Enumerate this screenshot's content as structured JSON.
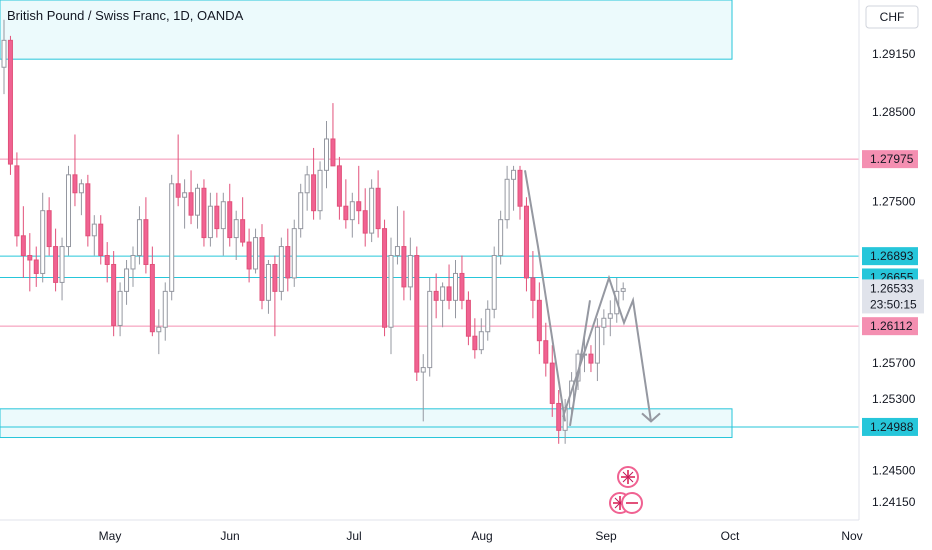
{
  "header": {
    "title": "British Pound / Swiss Franc, 1D, OANDA",
    "currency_badge": "CHF"
  },
  "chart_data": {
    "type": "candlestick",
    "symbol": "British Pound / Swiss Franc",
    "interval": "1D",
    "broker": "OANDA",
    "currency": "CHF",
    "ylim": [
      1.2395,
      1.2975
    ],
    "y_ticks": [
      1.2415,
      1.245,
      1.253,
      1.257,
      1.275,
      1.285,
      1.2915
    ],
    "x_ticks": [
      "May",
      "Jun",
      "Jul",
      "Aug",
      "Sep",
      "Oct",
      "Nov"
    ],
    "price_lines": [
      {
        "value": 1.27975,
        "label": "1.27975",
        "color": "#f48fb1"
      },
      {
        "value": 1.26893,
        "label": "1.26893",
        "color": "#26c6da"
      },
      {
        "value": 1.26655,
        "label": "1.26655",
        "color": "#26c6da"
      },
      {
        "value": 1.26112,
        "label": "1.26112",
        "color": "#f48fb1"
      },
      {
        "value": 1.24988,
        "label": "1.24988",
        "color": "#26c6da"
      }
    ],
    "current_price": {
      "value": 1.26533,
      "label": "1.26533",
      "countdown": "23:50:15"
    },
    "zones": [
      {
        "top": 1.2975,
        "bottom": 1.2909
      },
      {
        "top": 1.2519,
        "bottom": 1.2487
      }
    ],
    "candles": [
      [
        1.29,
        1.2953,
        1.287,
        1.293
      ],
      [
        1.293,
        1.2935,
        1.278,
        1.2792
      ],
      [
        1.279,
        1.2805,
        1.27,
        1.2712
      ],
      [
        1.2712,
        1.2745,
        1.2665,
        1.269
      ],
      [
        1.269,
        1.2715,
        1.265,
        1.2685
      ],
      [
        1.2685,
        1.27,
        1.2655,
        1.267
      ],
      [
        1.267,
        1.276,
        1.266,
        1.274
      ],
      [
        1.274,
        1.2755,
        1.269,
        1.27
      ],
      [
        1.27,
        1.272,
        1.265,
        1.266
      ],
      [
        1.266,
        1.271,
        1.264,
        1.27
      ],
      [
        1.27,
        1.279,
        1.269,
        1.278
      ],
      [
        1.278,
        1.2825,
        1.2745,
        1.276
      ],
      [
        1.276,
        1.2775,
        1.2735,
        1.277
      ],
      [
        1.277,
        1.278,
        1.27,
        1.2712
      ],
      [
        1.2712,
        1.2735,
        1.269,
        1.2725
      ],
      [
        1.2725,
        1.2735,
        1.268,
        1.269
      ],
      [
        1.269,
        1.2705,
        1.266,
        1.268
      ],
      [
        1.268,
        1.2695,
        1.26,
        1.2612
      ],
      [
        1.2612,
        1.266,
        1.26,
        1.265
      ],
      [
        1.265,
        1.2685,
        1.2635,
        1.2675
      ],
      [
        1.2675,
        1.27,
        1.2655,
        1.269
      ],
      [
        1.269,
        1.2745,
        1.268,
        1.273
      ],
      [
        1.273,
        1.2755,
        1.267,
        1.268
      ],
      [
        1.268,
        1.27,
        1.26,
        1.2605
      ],
      [
        1.2605,
        1.263,
        1.258,
        1.261
      ],
      [
        1.261,
        1.266,
        1.2595,
        1.265
      ],
      [
        1.265,
        1.278,
        1.264,
        1.277
      ],
      [
        1.277,
        1.2825,
        1.2745,
        1.2755
      ],
      [
        1.2755,
        1.2775,
        1.272,
        1.276
      ],
      [
        1.276,
        1.2785,
        1.2725,
        1.2735
      ],
      [
        1.2735,
        1.277,
        1.272,
        1.2765
      ],
      [
        1.2765,
        1.2775,
        1.27,
        1.271
      ],
      [
        1.271,
        1.276,
        1.27,
        1.2745
      ],
      [
        1.2745,
        1.276,
        1.271,
        1.272
      ],
      [
        1.272,
        1.276,
        1.269,
        1.275
      ],
      [
        1.275,
        1.277,
        1.27,
        1.271
      ],
      [
        1.271,
        1.274,
        1.2685,
        1.273
      ],
      [
        1.273,
        1.2755,
        1.27,
        1.2705
      ],
      [
        1.2705,
        1.272,
        1.266,
        1.2675
      ],
      [
        1.2675,
        1.272,
        1.267,
        1.271
      ],
      [
        1.271,
        1.2725,
        1.263,
        1.264
      ],
      [
        1.264,
        1.2685,
        1.2625,
        1.268
      ],
      [
        1.268,
        1.269,
        1.26,
        1.265
      ],
      [
        1.265,
        1.271,
        1.264,
        1.27
      ],
      [
        1.27,
        1.272,
        1.265,
        1.2665
      ],
      [
        1.2665,
        1.273,
        1.2655,
        1.272
      ],
      [
        1.272,
        1.277,
        1.271,
        1.276
      ],
      [
        1.276,
        1.279,
        1.274,
        1.278
      ],
      [
        1.278,
        1.281,
        1.273,
        1.274
      ],
      [
        1.274,
        1.2795,
        1.273,
        1.2785
      ],
      [
        1.2785,
        1.284,
        1.2765,
        1.282
      ],
      [
        1.282,
        1.286,
        1.279,
        1.279
      ],
      [
        1.279,
        1.28,
        1.273,
        1.2745
      ],
      [
        1.2745,
        1.2775,
        1.272,
        1.273
      ],
      [
        1.273,
        1.276,
        1.271,
        1.275
      ],
      [
        1.275,
        1.279,
        1.2725,
        1.274
      ],
      [
        1.274,
        1.2765,
        1.27,
        1.2715
      ],
      [
        1.2715,
        1.2775,
        1.2705,
        1.2765
      ],
      [
        1.2765,
        1.2785,
        1.271,
        1.272
      ],
      [
        1.272,
        1.273,
        1.26,
        1.261
      ],
      [
        1.261,
        1.271,
        1.258,
        1.269
      ],
      [
        1.269,
        1.2745,
        1.268,
        1.27
      ],
      [
        1.27,
        1.274,
        1.264,
        1.2655
      ],
      [
        1.2655,
        1.271,
        1.264,
        1.269
      ],
      [
        1.269,
        1.27,
        1.255,
        1.256
      ],
      [
        1.256,
        1.258,
        1.2505,
        1.2565
      ],
      [
        1.2565,
        1.2665,
        1.2555,
        1.265
      ],
      [
        1.265,
        1.267,
        1.262,
        1.264
      ],
      [
        1.264,
        1.266,
        1.261,
        1.2655
      ],
      [
        1.2655,
        1.268,
        1.263,
        1.264
      ],
      [
        1.264,
        1.2685,
        1.262,
        1.267
      ],
      [
        1.267,
        1.269,
        1.263,
        1.264
      ],
      [
        1.264,
        1.265,
        1.259,
        1.26
      ],
      [
        1.26,
        1.262,
        1.2575,
        1.2585
      ],
      [
        1.2585,
        1.262,
        1.258,
        1.2605
      ],
      [
        1.2605,
        1.264,
        1.2595,
        1.263
      ],
      [
        1.263,
        1.27,
        1.262,
        1.269
      ],
      [
        1.269,
        1.274,
        1.268,
        1.273
      ],
      [
        1.273,
        1.279,
        1.272,
        1.2775
      ],
      [
        1.2775,
        1.279,
        1.274,
        1.2785
      ],
      [
        1.2785,
        1.279,
        1.273,
        1.2745
      ],
      [
        1.2745,
        1.2755,
        1.265,
        1.2665
      ],
      [
        1.2665,
        1.2695,
        1.262,
        1.264
      ],
      [
        1.264,
        1.266,
        1.258,
        1.2595
      ],
      [
        1.2595,
        1.2615,
        1.2555,
        1.257
      ],
      [
        1.257,
        1.259,
        1.251,
        1.2525
      ],
      [
        1.2525,
        1.254,
        1.248,
        1.2495
      ],
      [
        1.2495,
        1.253,
        1.248,
        1.252
      ],
      [
        1.252,
        1.256,
        1.251,
        1.255
      ],
      [
        1.255,
        1.2585,
        1.254,
        1.258
      ],
      [
        1.258,
        1.26,
        1.256,
        1.258
      ],
      [
        1.258,
        1.259,
        1.256,
        1.257
      ],
      [
        1.257,
        1.262,
        1.255,
        1.261
      ],
      [
        1.261,
        1.263,
        1.259,
        1.262
      ],
      [
        1.262,
        1.264,
        1.26,
        1.2625
      ],
      [
        1.2625,
        1.2665,
        1.2615,
        1.265
      ],
      [
        1.265,
        1.266,
        1.264,
        1.2653
      ]
    ],
    "projection": {
      "path_a": [
        [
          0,
          1.251
        ],
        [
          1,
          1.2665
        ],
        [
          2,
          1.2615
        ],
        [
          3,
          1.264
        ],
        [
          4,
          1.2505
        ]
      ],
      "path_b": [
        [
          0,
          1.25
        ],
        [
          1,
          1.264
        ]
      ]
    },
    "event_flags": [
      "uk-flag-icon",
      "uk-flag-icon"
    ]
  }
}
